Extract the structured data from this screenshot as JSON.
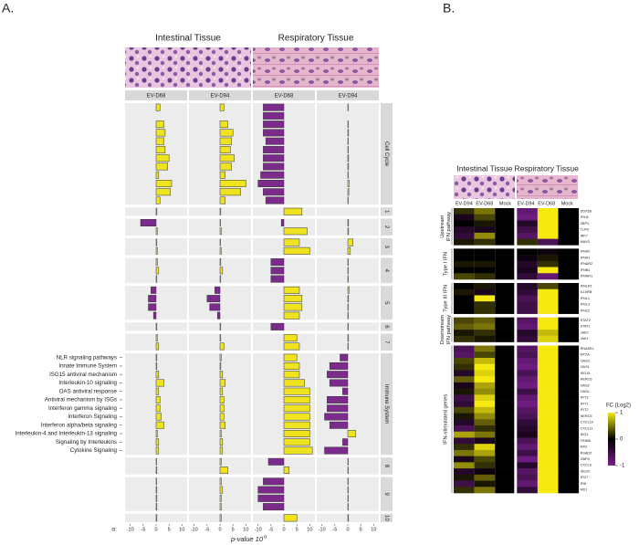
{
  "panel_labels": [
    "A.",
    "B."
  ],
  "chart_data": [
    {
      "type": "bar",
      "orientation": "horizontal",
      "tissues": [
        "Intestinal Tissue",
        "Respiratory Tissue"
      ],
      "facets": [
        "EV-D68",
        "EV-D94",
        "EV-D68",
        "EV-D94"
      ],
      "colors": {
        "positive": "#efe320",
        "negative": "#7c2a8c"
      },
      "xlim": [
        -12,
        12
      ],
      "xticks": [
        -10,
        -5,
        0,
        5,
        10
      ],
      "x_prefix": "α:",
      "x_label": "p-value 10",
      "x_label_sup": "α",
      "groups": [
        {
          "name": "Cell Cycle",
          "categories": [
            null,
            null,
            null,
            null,
            null,
            null,
            null,
            null,
            null,
            null,
            null,
            null
          ],
          "values": [
            [
              1.5,
              0,
              3,
              3.5,
              3,
              3.5,
              5,
              4.5,
              1,
              6,
              5.5,
              1.5
            ],
            [
              1.5,
              0,
              3,
              5,
              4.5,
              4,
              5.5,
              4.5,
              2,
              10,
              8,
              2
            ],
            [
              -8,
              -8,
              -8,
              -8,
              -7,
              -8,
              -8,
              -8,
              -9,
              -10,
              -8,
              -7
            ],
            [
              0.2,
              0,
              0.2,
              0.3,
              0.2,
              0.2,
              0.3,
              0.3,
              0.2,
              0.5,
              0.4,
              0.2
            ]
          ]
        },
        {
          "name": "1",
          "categories": [
            null
          ],
          "values": [
            [
              0.3
            ],
            [
              0.3
            ],
            [
              7
            ],
            [
              0
            ]
          ]
        },
        {
          "name": "2",
          "categories": [
            null,
            null
          ],
          "values": [
            [
              -6,
              0.5
            ],
            [
              0.2,
              0.5
            ],
            [
              -1,
              9
            ],
            [
              0.3,
              0.3
            ]
          ]
        },
        {
          "name": "3",
          "categories": [
            null,
            null
          ],
          "values": [
            [
              0.3,
              0.5
            ],
            [
              0.2,
              0.5
            ],
            [
              6,
              10
            ],
            [
              2,
              1
            ]
          ]
        },
        {
          "name": "4",
          "categories": [
            null,
            null,
            null
          ],
          "values": [
            [
              0.5,
              1,
              0.3
            ],
            [
              0.3,
              1,
              0.3
            ],
            [
              -5,
              -5,
              -5
            ],
            [
              0.2,
              0.2,
              0.2
            ]
          ]
        },
        {
          "name": "5",
          "categories": [
            null,
            null,
            null,
            null
          ],
          "values": [
            [
              -2,
              -3,
              -3,
              -1
            ],
            [
              -2,
              -5,
              -4,
              -1
            ],
            [
              6,
              7,
              7,
              6
            ],
            [
              0.5,
              0.3,
              0.2,
              0.2
            ]
          ]
        },
        {
          "name": "6",
          "categories": [
            null
          ],
          "values": [
            [
              0.3
            ],
            [
              0.3
            ],
            [
              -5
            ],
            [
              0.2
            ]
          ]
        },
        {
          "name": "7",
          "categories": [
            null,
            null
          ],
          "values": [
            [
              0.5,
              1
            ],
            [
              0.3,
              1.5
            ],
            [
              5,
              6
            ],
            [
              0.3,
              0.2
            ]
          ]
        },
        {
          "name": "Immune System",
          "categories": [
            "NLR signaling pathways",
            "Innate Immune System",
            "ISG15 antiviral mechanism",
            "Interleukin-10 signaling",
            "OAS antiviral response",
            "Antiviral mechanism by ISGs",
            "Interferon gamma signaling",
            "Interferon Signaling",
            "Interferon alpha/beta signaling",
            "Interleukin-4 and Interleukin-13 signaling",
            "Signaling by Interleukins",
            "Cytokine Signaling"
          ],
          "values": [
            [
              0.3,
              0.3,
              1,
              3,
              1,
              1.5,
              1.5,
              2,
              3,
              0.5,
              1,
              1
            ],
            [
              0.5,
              0.3,
              1,
              2,
              1,
              1.5,
              1.5,
              1.5,
              2,
              0.5,
              1,
              1
            ],
            [
              5,
              6,
              6,
              8,
              10,
              10,
              10,
              10,
              10,
              10,
              10,
              11
            ],
            [
              -3,
              -7,
              -8,
              -7,
              -2,
              -8,
              -8,
              -9,
              -7,
              3,
              -2,
              -9
            ]
          ]
        },
        {
          "name": "8",
          "categories": [
            null,
            null
          ],
          "values": [
            [
              0.2,
              0.3
            ],
            [
              0.5,
              3
            ],
            [
              -6,
              2
            ],
            [
              0.2,
              0.2
            ]
          ]
        },
        {
          "name": "9",
          "categories": [
            null,
            null,
            null,
            null
          ],
          "values": [
            [
              0.2,
              0.3,
              0.3,
              0.3
            ],
            [
              0.5,
              1,
              0.5,
              0.5
            ],
            [
              -8,
              -10,
              -10,
              -8
            ],
            [
              0.2,
              0.2,
              0.2,
              0.2
            ]
          ]
        },
        {
          "name": "10",
          "categories": [
            null
          ],
          "values": [
            [
              0.3
            ],
            [
              0.5
            ],
            [
              5
            ],
            [
              0.3
            ]
          ]
        }
      ]
    },
    {
      "type": "heatmap",
      "tissues": [
        "Intestinal Tissue",
        "Respiratory Tissue"
      ],
      "columns": [
        "EV-D94",
        "EV-D68",
        "Mock",
        "EV-D94",
        "EV-D68",
        "Mock"
      ],
      "colors": {
        "low": "#7b1f8e",
        "mid": "#000000",
        "high": "#f5e90f"
      },
      "colorbar": {
        "label": "FC (Log2)",
        "lim": [
          -1,
          1
        ],
        "ticks": [
          1,
          0,
          -1
        ]
      },
      "groups": [
        {
          "name": [
            "Upstream",
            "IFN pathway"
          ],
          "rows": [
            "DDX58",
            "IFIH1",
            "ZBP1",
            "TLR3",
            "IRF7",
            "MAVS"
          ],
          "values": [
            [
              0.2,
              0.5,
              0,
              -0.8,
              1,
              0
            ],
            [
              -0.2,
              0.3,
              0,
              -0.9,
              1,
              0
            ],
            [
              0,
              0.1,
              0,
              -0.3,
              1,
              0
            ],
            [
              -0.3,
              -0.2,
              0,
              -0.5,
              1,
              0
            ],
            [
              -0.4,
              0.6,
              0,
              -0.7,
              1,
              0
            ],
            [
              0.1,
              0.2,
              0,
              0.2,
              -0.6,
              0
            ]
          ]
        },
        {
          "name": [
            "Type I IFN"
          ],
          "rows": [
            "IFNA2",
            "IFNA1",
            "IFNAR2",
            "IFNB1",
            "IFNAR1"
          ],
          "values": [
            [
              0,
              0,
              0,
              0,
              -0.1,
              0
            ],
            [
              0,
              0,
              0,
              -0.1,
              0.1,
              0
            ],
            [
              0.1,
              0.1,
              0,
              -0.3,
              0.2,
              0
            ],
            [
              0,
              0,
              0,
              -0.2,
              1,
              0
            ],
            [
              0.3,
              0.2,
              0,
              -0.4,
              -0.8,
              0
            ]
          ]
        },
        {
          "name": [
            "Type III IFN"
          ],
          "rows": [
            "IFNLR1",
            "IL10RB",
            "IFNL1",
            "IFNL3",
            "IFNL2"
          ],
          "values": [
            [
              0,
              0.1,
              0,
              -0.3,
              0.3,
              0
            ],
            [
              0.1,
              -0.2,
              0,
              -0.4,
              1,
              0
            ],
            [
              0,
              1,
              0,
              -0.6,
              1,
              0
            ],
            [
              0,
              0.2,
              0,
              -0.5,
              1,
              0
            ],
            [
              0,
              0.2,
              0,
              -0.5,
              1,
              0
            ]
          ]
        },
        {
          "name": [
            "Downstream",
            "IFN pathway"
          ],
          "rows": [
            "STAT2",
            "STAT1",
            "JAK2",
            "JAK1"
          ],
          "values": [
            [
              0.3,
              0.4,
              0,
              -0.7,
              1,
              0
            ],
            [
              0.4,
              0.5,
              0,
              -0.8,
              1,
              0
            ],
            [
              0.1,
              0.2,
              0,
              -0.3,
              0.8,
              0
            ],
            [
              0.2,
              0.1,
              0,
              -0.4,
              0.9,
              0
            ]
          ]
        },
        {
          "name": [
            "IFN-stimulated genes"
          ],
          "rows": [
            "RNASEL",
            "MT2A",
            "OAS3",
            "OAS1",
            "ISG15",
            "HERC6",
            "OAS2",
            "OASL",
            "IFIT3",
            "IFIT1",
            "IFIT2",
            "HERC5",
            "CXCL10",
            "CXCL11",
            "IDO1",
            "TRIM6",
            "MX2",
            "RSAD2",
            "GBP4",
            "CXCL9",
            "ISG20",
            "IFI27",
            "IFI6",
            "MX1"
          ],
          "values": [
            [
              -0.6,
              0.5,
              0,
              -0.7,
              1,
              0
            ],
            [
              -0.7,
              0.3,
              0,
              -0.6,
              1,
              0
            ],
            [
              0.3,
              0.8,
              0,
              -0.8,
              1,
              0
            ],
            [
              0.2,
              1,
              0,
              -0.9,
              1,
              0
            ],
            [
              -0.3,
              0.9,
              0,
              -0.6,
              1,
              0
            ],
            [
              0.4,
              1,
              0,
              -0.8,
              1,
              0
            ],
            [
              -0.2,
              0.7,
              0,
              -0.9,
              1,
              0
            ],
            [
              0.1,
              0.6,
              0,
              -0.5,
              1,
              0
            ],
            [
              -0.5,
              0.9,
              0,
              -0.8,
              1,
              0
            ],
            [
              -0.4,
              1,
              0,
              -0.9,
              1,
              0
            ],
            [
              0.3,
              0.8,
              0,
              -0.7,
              1,
              0
            ],
            [
              0.1,
              0.6,
              0,
              -0.6,
              1,
              0
            ],
            [
              -0.3,
              0.4,
              0,
              -0.4,
              1,
              0
            ],
            [
              -0.6,
              0.2,
              0,
              -0.3,
              1,
              0
            ],
            [
              0.7,
              0.5,
              0,
              -0.2,
              1,
              0
            ],
            [
              -0.4,
              -0.2,
              0,
              -0.6,
              1,
              0
            ],
            [
              0.2,
              0.9,
              0,
              -0.8,
              1,
              0
            ],
            [
              0.5,
              0.7,
              0,
              -0.5,
              1,
              0
            ],
            [
              -0.2,
              0.3,
              0,
              -0.9,
              1,
              0
            ],
            [
              0.6,
              0.2,
              0,
              -0.3,
              1,
              0
            ],
            [
              -0.3,
              -0.1,
              0,
              -0.7,
              1,
              0
            ],
            [
              0.1,
              0.4,
              0,
              -0.6,
              1,
              0
            ],
            [
              -0.5,
              0.1,
              0,
              -0.8,
              1,
              0
            ],
            [
              0.2,
              0.5,
              0,
              -0.4,
              1,
              0
            ]
          ]
        }
      ]
    }
  ]
}
